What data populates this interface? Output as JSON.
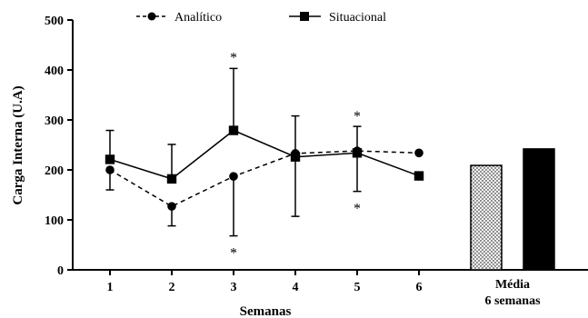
{
  "chart_data": {
    "type": "line",
    "ylabel": "Carga Interna (U.A)",
    "xlabel": "Semanas",
    "ylim": [
      0,
      500
    ],
    "yticks": [
      "0",
      "100",
      "200",
      "300",
      "400",
      "500"
    ],
    "categories": [
      "1",
      "2",
      "3",
      "4",
      "5",
      "6"
    ],
    "summary_category": [
      "Média",
      "6 semanas"
    ],
    "series": [
      {
        "name": "Analítico",
        "marker": "circle",
        "line_style": "dashed",
        "values": [
          200,
          127,
          187,
          233,
          238,
          234
        ],
        "error_low": [
          160,
          88,
          68,
          null,
          157,
          null
        ],
        "summary_value": 209,
        "summary_fill": "dotted"
      },
      {
        "name": "Situacional",
        "marker": "square",
        "line_style": "solid",
        "values": [
          221,
          182,
          279,
          226,
          234,
          188
        ],
        "error_high": [
          279,
          251,
          403,
          308,
          287,
          null
        ],
        "error_low": [
          null,
          null,
          null,
          107,
          null,
          null
        ],
        "summary_value": 242,
        "summary_fill": "solid"
      }
    ],
    "annotations": [
      {
        "text": "*",
        "category": "3",
        "value": 434
      },
      {
        "text": "*",
        "category": "3",
        "value": 43
      },
      {
        "text": "*",
        "category": "5",
        "value": 316
      },
      {
        "text": "*",
        "category": "5",
        "value": 132
      }
    ],
    "grid": false,
    "legend_position": "top"
  },
  "colors": {
    "ink": "#000000",
    "bar_dotted_bg": "#f2f2f2"
  }
}
